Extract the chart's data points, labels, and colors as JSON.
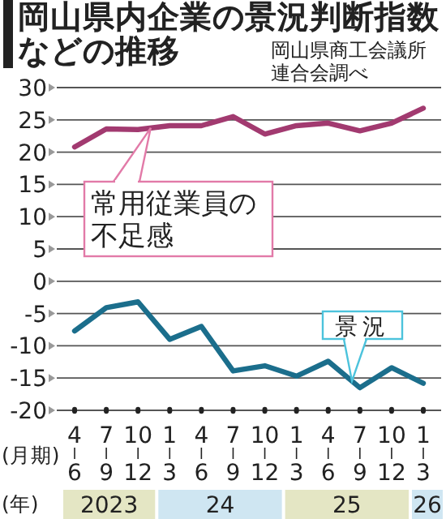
{
  "chart_data": {
    "type": "line",
    "title": "岡山県内企業の景況判断指数などの推移",
    "annotations": [
      "岡山県商工会議所連合会調べ",
      "(年)",
      "2023",
      "24",
      "25",
      "26"
    ],
    "xlabel": "(月期)",
    "categories": [
      "4\n6",
      "7\n9",
      "10\n12",
      "1\n3",
      "4\n6",
      "7\n9",
      "10\n12",
      "1\n3",
      "4\n6",
      "7\n9",
      "10\n12",
      "1\n3"
    ],
    "series": [
      {
        "name": "常用従業員の不足感",
        "color": "#a23a70",
        "values": [
          20.8,
          23.6,
          23.5,
          24.1,
          24.1,
          25.5,
          22.8,
          24.1,
          24.5,
          23.3,
          24.5,
          26.8
        ]
      },
      {
        "name": "景況",
        "color": "#1b6e8c",
        "values": [
          -7.7,
          -4.1,
          -3.2,
          -9.0,
          -7.0,
          -13.9,
          -13.1,
          -14.7,
          -12.4,
          -16.5,
          -13.4,
          -15.8
        ]
      }
    ],
    "ylim": [
      -20,
      30
    ],
    "yticks": [
      30,
      25,
      20,
      15,
      10,
      5,
      0,
      -5,
      -10,
      -15,
      -20
    ],
    "grid": "y",
    "marker": "none",
    "line_style": "solid"
  }
}
